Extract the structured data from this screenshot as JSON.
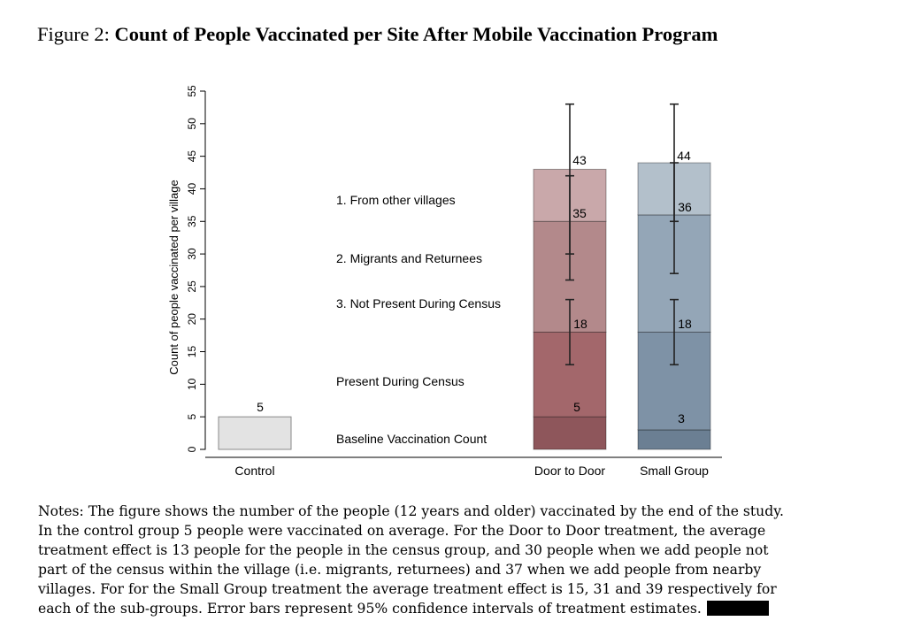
{
  "figure_label": "Figure 2:",
  "figure_title": "Count of People Vaccinated per Site After Mobile Vaccination Program",
  "colors": {
    "control": "#e3e3e3",
    "door_to_door": [
      "#8e565b",
      "#a3676b",
      "#b3898b",
      "#c9a8aa"
    ],
    "small_group": [
      "#6b7f93",
      "#7e92a6",
      "#94a6b7",
      "#b3c0cb"
    ]
  },
  "chart_data": {
    "type": "bar",
    "stacked": true,
    "ylabel": "Count of people vaccinated per village",
    "ylim": [
      0,
      55
    ],
    "yticks": [
      0,
      5,
      10,
      15,
      20,
      25,
      30,
      35,
      40,
      45,
      50,
      55
    ],
    "categories": [
      "Control",
      "Door to Door",
      "Small Group"
    ],
    "segments": [
      {
        "name": "Baseline Vaccination Count",
        "values": [
          5,
          5,
          3
        ]
      },
      {
        "name": "Present During Census",
        "values": [
          0,
          13,
          15
        ]
      },
      {
        "name": "Not Present During Census",
        "values": [
          0,
          17,
          18
        ]
      },
      {
        "name": "From other villages",
        "values": [
          0,
          8,
          8
        ]
      }
    ],
    "legend_labels": [
      "1. From other villages",
      "2. Migrants and Returnees",
      "3. Not Present During Census",
      "Present During Census",
      "Baseline Vaccination Count"
    ],
    "data_labels": {
      "Control": [
        "5"
      ],
      "Door to Door": [
        "5",
        "18",
        "35",
        "43"
      ],
      "Small Group": [
        "3",
        "18",
        "36",
        "44"
      ]
    },
    "error_bars": {
      "Door to Door": [
        {
          "center": 18,
          "low": 13,
          "high": 23
        },
        {
          "center": 34,
          "low": 26,
          "high": 42
        },
        {
          "center": 43,
          "low": 30,
          "high": 53
        }
      ],
      "Small Group": [
        {
          "center": 18,
          "low": 13,
          "high": 23
        },
        {
          "center": 35,
          "low": 27,
          "high": 44
        },
        {
          "center": 44,
          "low": 35,
          "high": 53
        }
      ]
    },
    "grid": false
  },
  "notes": [
    "Notes: The figure shows the number of the people (12 years and older) vaccinated by the end of the study.",
    "In the control group 5 people were vaccinated on average. For the Door to Door treatment, the average",
    "treatment effect is 13 people for the people in the census group, and 30 people when we add people not",
    "part of the census within the village (i.e. migrants, returnees) and 37 when we add people from nearby",
    "villages. For for the Small Group treatment the average treatment effect is 15, 31 and 39 respectively for",
    "each of the sub-groups. Error bars represent 95% confidence intervals of treatment estimates."
  ]
}
